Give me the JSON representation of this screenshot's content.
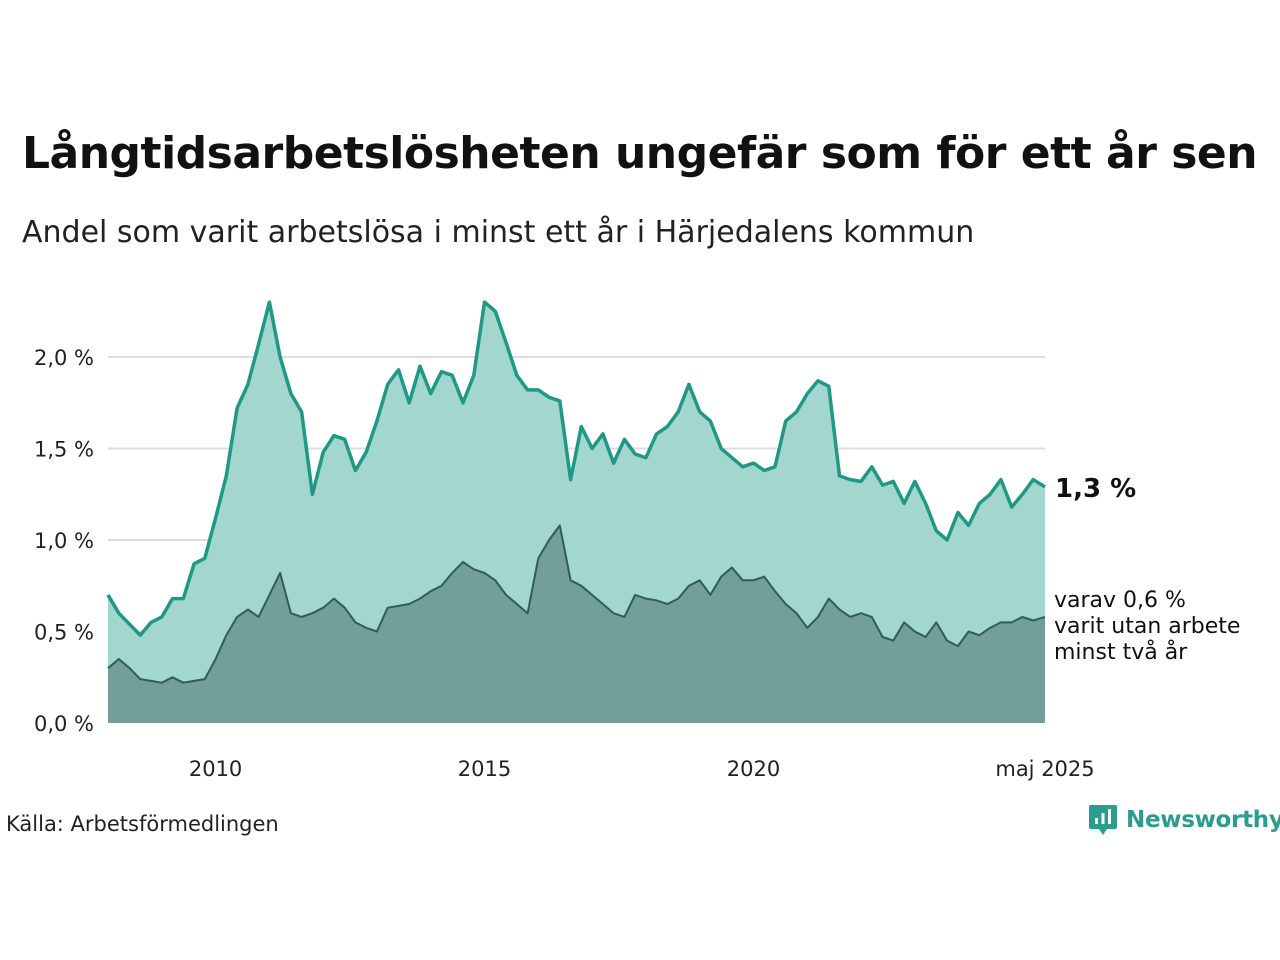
{
  "title": "Långtidsarbetslösheten ungefär som för ett år sen",
  "subtitle": "Andel som varit arbetslösa i minst ett år i Härjedalens kommun",
  "source": "Källa: Arbetsförmedlingen",
  "brand": {
    "name": "Newsworthy",
    "icon": "newsworthy-logo-icon"
  },
  "colors": {
    "main_line": "#1f9985",
    "main_fill": "#a3d6ce",
    "sub_line": "#2f5e57",
    "sub_fill": "#729f97",
    "grid": "#dddddd"
  },
  "chart_data": {
    "type": "area",
    "x_ticks": [
      {
        "x": 2010,
        "label": "2010"
      },
      {
        "x": 2015,
        "label": "2015"
      },
      {
        "x": 2020,
        "label": "2020"
      },
      {
        "x": 2025.42,
        "label": "maj 2025"
      }
    ],
    "y_ticks": [
      {
        "y": 0.0,
        "label": "0,0 %"
      },
      {
        "y": 0.5,
        "label": "0,5 %"
      },
      {
        "y": 1.0,
        "label": "1,0 %"
      },
      {
        "y": 1.5,
        "label": "1,5 %"
      },
      {
        "y": 2.0,
        "label": "2,0 %"
      }
    ],
    "xlim": [
      2008.0,
      2025.42
    ],
    "ylim": [
      0,
      2.35
    ],
    "grid": true,
    "end_label": "1,3 %",
    "sub_label_lines": [
      "varav 0,6 %",
      "varit utan arbete",
      "minst två år"
    ],
    "series": [
      {
        "key": "main",
        "x": [
          2008.0,
          2008.2,
          2008.4,
          2008.6,
          2008.8,
          2009.0,
          2009.2,
          2009.4,
          2009.6,
          2009.8,
          2010.0,
          2010.2,
          2010.4,
          2010.6,
          2010.8,
          2011.0,
          2011.2,
          2011.4,
          2011.6,
          2011.8,
          2012.0,
          2012.2,
          2012.4,
          2012.6,
          2012.8,
          2013.0,
          2013.2,
          2013.4,
          2013.6,
          2013.8,
          2014.0,
          2014.2,
          2014.4,
          2014.6,
          2014.8,
          2015.0,
          2015.2,
          2015.4,
          2015.6,
          2015.8,
          2016.0,
          2016.2,
          2016.4,
          2016.6,
          2016.8,
          2017.0,
          2017.2,
          2017.4,
          2017.6,
          2017.8,
          2018.0,
          2018.2,
          2018.4,
          2018.6,
          2018.8,
          2019.0,
          2019.2,
          2019.4,
          2019.6,
          2019.8,
          2020.0,
          2020.2,
          2020.4,
          2020.6,
          2020.8,
          2021.0,
          2021.2,
          2021.4,
          2021.6,
          2021.8,
          2022.0,
          2022.2,
          2022.4,
          2022.6,
          2022.8,
          2023.0,
          2023.2,
          2023.4,
          2023.6,
          2023.8,
          2024.0,
          2024.2,
          2024.4,
          2024.6,
          2024.8,
          2025.0,
          2025.2,
          2025.42
        ],
        "values": [
          0.7,
          0.6,
          0.54,
          0.48,
          0.55,
          0.58,
          0.68,
          0.68,
          0.87,
          0.9,
          1.12,
          1.35,
          1.72,
          1.85,
          2.07,
          2.3,
          2.0,
          1.8,
          1.7,
          1.25,
          1.48,
          1.57,
          1.55,
          1.38,
          1.48,
          1.65,
          1.85,
          1.93,
          1.75,
          1.95,
          1.8,
          1.92,
          1.9,
          1.75,
          1.9,
          2.3,
          2.25,
          2.08,
          1.9,
          1.82,
          1.82,
          1.78,
          1.76,
          1.33,
          1.62,
          1.5,
          1.58,
          1.42,
          1.55,
          1.47,
          1.45,
          1.58,
          1.62,
          1.7,
          1.85,
          1.7,
          1.65,
          1.5,
          1.45,
          1.4,
          1.42,
          1.38,
          1.4,
          1.65,
          1.7,
          1.8,
          1.87,
          1.84,
          1.35,
          1.33,
          1.32,
          1.4,
          1.3,
          1.32,
          1.2,
          1.32,
          1.2,
          1.05,
          1.0,
          1.15,
          1.08,
          1.2,
          1.25,
          1.33,
          1.18,
          1.25,
          1.33,
          1.29
        ]
      },
      {
        "key": "sub",
        "x": [
          2008.0,
          2008.2,
          2008.4,
          2008.6,
          2008.8,
          2009.0,
          2009.2,
          2009.4,
          2009.6,
          2009.8,
          2010.0,
          2010.2,
          2010.4,
          2010.6,
          2010.8,
          2011.0,
          2011.2,
          2011.4,
          2011.6,
          2011.8,
          2012.0,
          2012.2,
          2012.4,
          2012.6,
          2012.8,
          2013.0,
          2013.2,
          2013.4,
          2013.6,
          2013.8,
          2014.0,
          2014.2,
          2014.4,
          2014.6,
          2014.8,
          2015.0,
          2015.2,
          2015.4,
          2015.6,
          2015.8,
          2016.0,
          2016.2,
          2016.4,
          2016.6,
          2016.8,
          2017.0,
          2017.2,
          2017.4,
          2017.6,
          2017.8,
          2018.0,
          2018.2,
          2018.4,
          2018.6,
          2018.8,
          2019.0,
          2019.2,
          2019.4,
          2019.6,
          2019.8,
          2020.0,
          2020.2,
          2020.4,
          2020.6,
          2020.8,
          2021.0,
          2021.2,
          2021.4,
          2021.6,
          2021.8,
          2022.0,
          2022.2,
          2022.4,
          2022.6,
          2022.8,
          2023.0,
          2023.2,
          2023.4,
          2023.6,
          2023.8,
          2024.0,
          2024.2,
          2024.4,
          2024.6,
          2024.8,
          2025.0,
          2025.2,
          2025.42
        ],
        "values": [
          0.3,
          0.35,
          0.3,
          0.24,
          0.23,
          0.22,
          0.25,
          0.22,
          0.23,
          0.24,
          0.35,
          0.48,
          0.58,
          0.62,
          0.58,
          0.7,
          0.82,
          0.6,
          0.58,
          0.6,
          0.63,
          0.68,
          0.63,
          0.55,
          0.52,
          0.5,
          0.63,
          0.64,
          0.65,
          0.68,
          0.72,
          0.75,
          0.82,
          0.88,
          0.84,
          0.82,
          0.78,
          0.7,
          0.65,
          0.6,
          0.9,
          1.0,
          1.08,
          0.78,
          0.75,
          0.7,
          0.65,
          0.6,
          0.58,
          0.7,
          0.68,
          0.67,
          0.65,
          0.68,
          0.75,
          0.78,
          0.7,
          0.8,
          0.85,
          0.78,
          0.78,
          0.8,
          0.72,
          0.65,
          0.6,
          0.52,
          0.58,
          0.68,
          0.62,
          0.58,
          0.6,
          0.58,
          0.47,
          0.45,
          0.55,
          0.5,
          0.47,
          0.55,
          0.45,
          0.42,
          0.5,
          0.48,
          0.52,
          0.55,
          0.55,
          0.58,
          0.56,
          0.58
        ]
      }
    ]
  }
}
